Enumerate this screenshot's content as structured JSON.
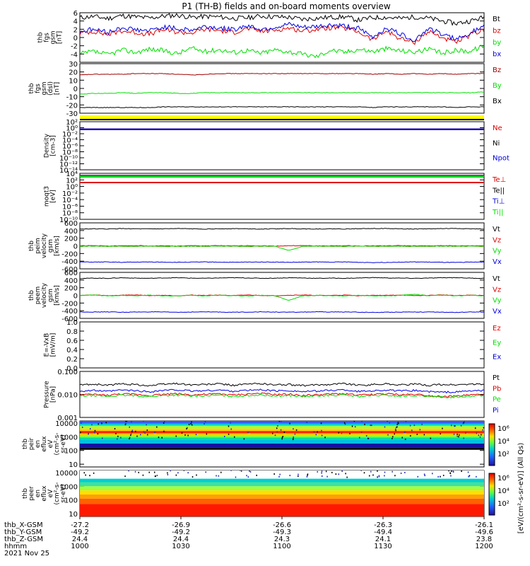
{
  "title": "P1  (TH-B) fields and on-board moments overview",
  "colors": {
    "black": "#000000",
    "red": "#e00000",
    "green": "#00e000",
    "blue": "#0000e0",
    "darkred": "#a00000",
    "yellow": "#ffff00"
  },
  "chart_data": [
    {
      "type": "line",
      "ylabel": [
        "thb",
        "fgs",
        "gsm",
        "[nT]"
      ],
      "ylim": [
        -6,
        6
      ],
      "yticks": [
        "6",
        "4",
        "2",
        "0",
        "-2",
        "-4"
      ],
      "series": [
        {
          "name": "Bt",
          "color": "#000000",
          "values": [
            4.8,
            5.1,
            4.6,
            5.3,
            5.0,
            4.7,
            5.2,
            5.4,
            4.9,
            5.1,
            5.0,
            4.6,
            4.8,
            5.2,
            5.0,
            4.9,
            4.4,
            4.7,
            4.9,
            5.0,
            4.2,
            4.8,
            4.9,
            4.6,
            5.0,
            4.7,
            4.0,
            3.4,
            4.0,
            4.9
          ]
        },
        {
          "name": "bz",
          "color": "#e00000",
          "values": [
            1.0,
            1.5,
            0.7,
            1.6,
            1.2,
            0.8,
            1.9,
            1.3,
            1.1,
            2.0,
            1.7,
            1.2,
            2.2,
            1.5,
            1.8,
            2.3,
            1.6,
            2.0,
            2.4,
            2.2,
            1.4,
            -0.6,
            1.6,
            -0.3,
            -1.2,
            1.5,
            0.0,
            -1.3,
            0.6,
            1.8
          ]
        },
        {
          "name": "by",
          "color": "#00e000",
          "values": [
            -4.0,
            -3.4,
            -4.2,
            -3.0,
            -3.6,
            -2.8,
            -3.2,
            -3.9,
            -2.6,
            -3.4,
            -2.9,
            -3.6,
            -3.1,
            -3.8,
            -3.0,
            -3.4,
            -4.1,
            -4.6,
            -3.0,
            -3.6,
            -2.8,
            -3.4,
            -2.7,
            -3.2,
            -3.5,
            -2.9,
            -3.8,
            -3.1,
            -3.3,
            -2.0
          ]
        },
        {
          "name": "bx",
          "color": "#0000e0",
          "values": [
            1.5,
            2.0,
            1.2,
            2.4,
            1.9,
            1.6,
            2.6,
            2.1,
            1.8,
            2.7,
            2.3,
            1.9,
            2.9,
            2.0,
            2.5,
            3.1,
            2.4,
            2.6,
            3.0,
            2.8,
            2.2,
            0.0,
            2.4,
            0.8,
            -0.6,
            2.2,
            0.8,
            -0.5,
            1.2,
            2.6
          ]
        }
      ]
    },
    {
      "type": "line",
      "ylabel": [
        "thb",
        "fgs",
        "gsm",
        "(dsl)",
        "[nT]"
      ],
      "ylim": [
        -35,
        35
      ],
      "yticks": [
        "30",
        "20",
        "10",
        "0",
        "-10",
        "-20",
        "-30"
      ],
      "series": [
        {
          "name": "Bz",
          "color": "#a00000",
          "values": [
            19,
            20,
            20,
            20,
            21,
            21,
            21,
            20,
            19,
            20,
            21,
            21,
            21,
            21,
            21,
            21,
            21,
            21,
            21,
            21,
            21,
            20,
            21,
            20,
            21,
            20,
            21,
            20,
            21,
            21
          ]
        },
        {
          "name": "By",
          "color": "#00e000",
          "values": [
            -8,
            -7,
            -7,
            -6,
            -7,
            -6,
            -6,
            -7,
            -7,
            -6,
            -6,
            -6,
            -6,
            -6,
            -6,
            -6,
            -6,
            -6,
            -6,
            -6,
            -6,
            -6,
            -6,
            -6,
            -6,
            -6,
            -6,
            -6,
            -6,
            -5
          ]
        },
        {
          "name": "Bx",
          "color": "#000000",
          "values": [
            -27,
            -27,
            -27,
            -27,
            -27,
            -27,
            -26,
            -26,
            -26,
            -26,
            -26,
            -26,
            -26,
            -26,
            -26,
            -26,
            -26,
            -26,
            -26,
            -26,
            -26,
            -27,
            -26,
            -26,
            -26,
            -26,
            -26,
            -27,
            -26,
            -26
          ]
        }
      ]
    },
    {
      "type": "line",
      "ylabel": [
        "Density",
        "[cm-3]"
      ],
      "scale": "log",
      "ylim_exp": [
        -14,
        3
      ],
      "yticks": [
        "10²",
        "10⁰",
        "10⁻²",
        "10⁻⁴",
        "10⁻⁶",
        "10⁻⁸",
        "10⁻¹⁰",
        "10⁻¹²",
        "10⁻¹⁴"
      ],
      "series": [
        {
          "name": "Ne",
          "color": "#e00000",
          "value_exp": 0.3
        },
        {
          "name": "Ni",
          "color": "#000000",
          "value_exp": 0.3
        },
        {
          "name": "Npot",
          "color": "#0000e0",
          "value_exp": 0.3
        }
      ]
    },
    {
      "type": "line",
      "ylabel": [
        "moqt3",
        "[eV]"
      ],
      "scale": "log",
      "ylim_exp": [
        -10,
        4
      ],
      "yticks": [
        "10⁴",
        "10²",
        "10⁰",
        "10⁻²",
        "10⁻⁴",
        "10⁻⁶",
        "10⁻⁸",
        "10⁻¹⁰"
      ],
      "series": [
        {
          "name": "Te⊥",
          "color": "#e00000",
          "value_exp": 1.2
        },
        {
          "name": "Te||",
          "color": "#000000",
          "value_exp": 3.3
        },
        {
          "name": "Ti⊥",
          "color": "#0000e0",
          "value_exp": 3.0
        },
        {
          "name": "Ti||",
          "color": "#00e000",
          "value_exp": 3.1
        }
      ]
    },
    {
      "type": "line",
      "ylabel": [
        "thb",
        "peim",
        "velocity",
        "gsm",
        "[km/s]"
      ],
      "ylim": [
        -600,
        600
      ],
      "yticks": [
        "600",
        "400",
        "200",
        "0",
        "-200",
        "-400",
        "-600"
      ],
      "series": [
        {
          "name": "Vt",
          "color": "#000000",
          "values": [
            440,
            445,
            440,
            450,
            445,
            440,
            445,
            450,
            445,
            440,
            445,
            450,
            445,
            440,
            445,
            450,
            445,
            440,
            445,
            440,
            450,
            455,
            450,
            445,
            440,
            445,
            450,
            455,
            445,
            440
          ]
        },
        {
          "name": "Vz",
          "color": "#e00000",
          "values": [
            0,
            5,
            -5,
            0,
            8,
            -4,
            2,
            -6,
            3,
            0,
            4,
            -3,
            5,
            0,
            -5,
            2,
            6,
            -2,
            0,
            4,
            -4,
            2,
            0,
            5,
            -3,
            0,
            6,
            -2,
            3,
            0
          ]
        },
        {
          "name": "Vy",
          "color": "#00e000",
          "values": [
            -10,
            -5,
            -15,
            -8,
            -12,
            -6,
            -10,
            -14,
            -8,
            -12,
            -6,
            -10,
            -14,
            -8,
            -10,
            -120,
            -12,
            -8,
            -10,
            -14,
            -6,
            -10,
            -12,
            -8,
            -14,
            -10,
            -6,
            -12,
            -8,
            -10
          ]
        },
        {
          "name": "Vx",
          "color": "#0000e0",
          "values": [
            -420,
            -425,
            -420,
            -430,
            -425,
            -420,
            -425,
            -430,
            -425,
            -420,
            -425,
            -430,
            -425,
            -420,
            -425,
            -430,
            -425,
            -420,
            -425,
            -420,
            -430,
            -435,
            -430,
            -425,
            -420,
            -425,
            -430,
            -435,
            -425,
            -420
          ]
        }
      ]
    },
    {
      "type": "line",
      "ylabel": [
        "thb",
        "peem",
        "velocity",
        "gsm",
        "[km/s]"
      ],
      "ylim": [
        -600,
        600
      ],
      "yticks": [
        "600",
        "400",
        "200",
        "0",
        "-200",
        "-400",
        "-600"
      ],
      "series": [
        {
          "name": "Vt",
          "color": "#000000",
          "values": [
            440,
            450,
            445,
            460,
            450,
            445,
            455,
            460,
            450,
            445,
            455,
            460,
            455,
            445,
            450,
            460,
            455,
            445,
            450,
            445,
            455,
            465,
            455,
            450,
            445,
            450,
            460,
            465,
            450,
            445
          ]
        },
        {
          "name": "Vz",
          "color": "#e00000",
          "values": [
            0,
            10,
            -8,
            5,
            12,
            -6,
            4,
            -10,
            6,
            0,
            8,
            -6,
            10,
            0,
            -8,
            4,
            10,
            -4,
            0,
            8,
            -8,
            4,
            0,
            10,
            -6,
            0,
            12,
            -4,
            6,
            0
          ]
        },
        {
          "name": "Vy",
          "color": "#00e000",
          "values": [
            -5,
            10,
            -15,
            0,
            -10,
            5,
            -10,
            -15,
            0,
            -12,
            4,
            -8,
            -14,
            0,
            -10,
            -130,
            -12,
            0,
            -10,
            -14,
            4,
            -10,
            -12,
            0,
            30,
            -10,
            4,
            -12,
            0,
            -10
          ]
        },
        {
          "name": "Vx",
          "color": "#0000e0",
          "values": [
            -430,
            -435,
            -430,
            -440,
            -435,
            -430,
            -435,
            -440,
            -435,
            -430,
            -435,
            -440,
            -435,
            -430,
            -435,
            -440,
            -435,
            -430,
            -435,
            -430,
            -440,
            -445,
            -440,
            -435,
            -430,
            -435,
            -440,
            -445,
            -435,
            -430
          ]
        }
      ]
    },
    {
      "type": "line",
      "ylabel": [
        "E=-VxB",
        "[mV/m]"
      ],
      "ylim": [
        0,
        1
      ],
      "yticks": [
        "1.0",
        "0.8",
        "0.6",
        "0.4",
        "0.2",
        "0.0"
      ],
      "series": [
        {
          "name": "Ez",
          "color": "#e00000",
          "values": []
        },
        {
          "name": "Ey",
          "color": "#00e000",
          "values": []
        },
        {
          "name": "Ex",
          "color": "#0000e0",
          "values": []
        }
      ]
    },
    {
      "type": "line",
      "ylabel": [
        "Pressure",
        "[nPa]"
      ],
      "scale": "log",
      "ylim_exp": [
        -3,
        -1
      ],
      "yticks": [
        "0.100",
        "0.010",
        "0.001"
      ],
      "series": [
        {
          "name": "Pt",
          "color": "#000000",
          "values": [
            0.026,
            0.028,
            0.025,
            0.029,
            0.027,
            0.024,
            0.028,
            0.03,
            0.026,
            0.027,
            0.029,
            0.025,
            0.028,
            0.03,
            0.026,
            0.027,
            0.024,
            0.026,
            0.028,
            0.03,
            0.025,
            0.027,
            0.029,
            0.026,
            0.028,
            0.025,
            0.027,
            0.026,
            0.028,
            0.027
          ]
        },
        {
          "name": "Pb",
          "color": "#e00000",
          "values": [
            0.0095,
            0.01,
            0.0092,
            0.0105,
            0.01,
            0.009,
            0.0102,
            0.0108,
            0.0096,
            0.01,
            0.0106,
            0.0094,
            0.0104,
            0.011,
            0.0098,
            0.0102,
            0.009,
            0.0096,
            0.0104,
            0.0108,
            0.0092,
            0.01,
            0.0106,
            0.0096,
            0.0102,
            0.009,
            0.008,
            0.0085,
            0.0095,
            0.01
          ]
        },
        {
          "name": "Pe",
          "color": "#00e000",
          "values": [
            0.0085,
            0.009,
            0.0082,
            0.0092,
            0.0088,
            0.008,
            0.009,
            0.0094,
            0.0084,
            0.0088,
            0.0092,
            0.0082,
            0.009,
            0.0095,
            0.0086,
            0.009,
            0.008,
            0.0085,
            0.0092,
            0.0094,
            0.0082,
            0.0088,
            0.0092,
            0.0084,
            0.009,
            0.008,
            0.0075,
            0.0078,
            0.0086,
            0.0088
          ]
        },
        {
          "name": "Pi",
          "color": "#0000e0",
          "values": [
            0.014,
            0.015,
            0.0135,
            0.0155,
            0.0145,
            0.013,
            0.015,
            0.0158,
            0.014,
            0.0146,
            0.0155,
            0.0138,
            0.015,
            0.016,
            0.0142,
            0.0148,
            0.0132,
            0.014,
            0.0152,
            0.0158,
            0.0135,
            0.0145,
            0.0155,
            0.014,
            0.015,
            0.0132,
            0.0125,
            0.0128,
            0.0142,
            0.0146
          ]
        }
      ]
    },
    {
      "type": "heatmap",
      "ylabel": [
        "thb",
        "peir",
        "en",
        "eflux",
        "eV",
        "(cm²-s-",
        "sr-eV)"
      ],
      "scale": "log",
      "ylim_exp": [
        0.8,
        4.15
      ],
      "yticks": [
        "10000",
        "1000",
        "100",
        "10"
      ],
      "bands": [
        {
          "from_exp": 3.95,
          "to_exp": 4.15,
          "color": "#3060ff"
        },
        {
          "from_exp": 3.8,
          "to_exp": 3.95,
          "color": "#00d0d0"
        },
        {
          "from_exp": 3.6,
          "to_exp": 3.8,
          "color": "#a0ff40"
        },
        {
          "from_exp": 3.42,
          "to_exp": 3.6,
          "color": "#ffd000"
        },
        {
          "from_exp": 3.25,
          "to_exp": 3.42,
          "color": "#ff2000"
        },
        {
          "from_exp": 3.1,
          "to_exp": 3.25,
          "color": "#ffd000"
        },
        {
          "from_exp": 2.95,
          "to_exp": 3.1,
          "color": "#80ff40"
        },
        {
          "from_exp": 2.8,
          "to_exp": 2.95,
          "color": "#00e0a0"
        },
        {
          "from_exp": 2.5,
          "to_exp": 2.8,
          "color": "#00c0e0"
        },
        {
          "from_exp": 2.2,
          "to_exp": 2.5,
          "color": "#1010a0"
        },
        {
          "from_exp": 2.05,
          "to_exp": 2.2,
          "color": "#000000"
        }
      ],
      "colorbar_label": "eV/(cm²-s-sr-eV)",
      "colorbar_ticks": [
        "10⁶",
        "10⁴",
        "10²"
      ]
    },
    {
      "type": "heatmap",
      "ylabel": [
        "thb",
        "peer",
        "en",
        "eflux",
        "eV",
        "(cm²-s-",
        "sr-eV)"
      ],
      "scale": "log",
      "ylim_exp": [
        0.8,
        4.15
      ],
      "yticks": [
        "10000",
        "1000",
        "100",
        "10"
      ],
      "bands": [
        {
          "from_exp": 3.55,
          "to_exp": 4.15,
          "color": "#ffffff"
        },
        {
          "from_exp": 3.3,
          "to_exp": 3.55,
          "color": "#00d0d0"
        },
        {
          "from_exp": 3.0,
          "to_exp": 3.3,
          "color": "#40e0a0"
        },
        {
          "from_exp": 2.7,
          "to_exp": 3.0,
          "color": "#a0ff40"
        },
        {
          "from_exp": 2.4,
          "to_exp": 2.7,
          "color": "#ffe000"
        },
        {
          "from_exp": 2.1,
          "to_exp": 2.4,
          "color": "#ffa000"
        },
        {
          "from_exp": 1.7,
          "to_exp": 2.1,
          "color": "#ff6000"
        },
        {
          "from_exp": 0.8,
          "to_exp": 1.7,
          "color": "#ff1800"
        }
      ],
      "colorbar_label": "eV/(cm²-s-sr-eV)",
      "colorbar_ticks": [
        "10⁶",
        "10⁴",
        "10²"
      ]
    }
  ],
  "quality_bar": "yellow",
  "colorbar_title": "[eV/(cm²-s-sr-eV)] (All Qs)",
  "xaxis": {
    "rows": [
      {
        "label": "thb_X-GSM",
        "values": [
          "-27.2",
          "-26.9",
          "-26.6",
          "-26.3",
          "-26.1"
        ]
      },
      {
        "label": "thb_Y-GSM",
        "values": [
          "-49.2",
          "-49.2",
          "-49.3",
          "-49.4",
          "-49.6"
        ]
      },
      {
        "label": "thb_Z-GSM",
        "values": [
          "24.4",
          "24.4",
          "24.3",
          "24.1",
          "23.8"
        ]
      },
      {
        "label": "hhmm",
        "values": [
          "1000",
          "1030",
          "1100",
          "1130",
          "1200"
        ]
      }
    ],
    "date": "2021 Nov 25"
  }
}
